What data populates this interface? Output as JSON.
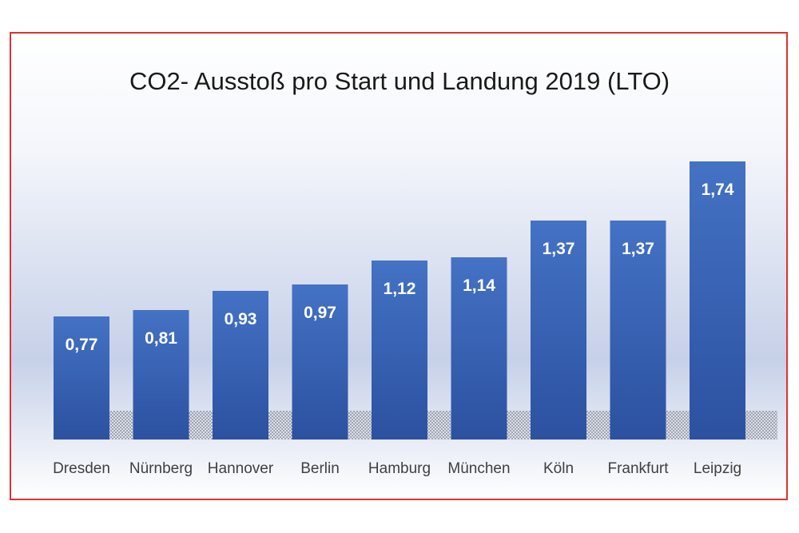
{
  "chart_data": {
    "type": "bar",
    "title": "CO2- Ausstoß pro Start und Landung 2019 (LTO)",
    "categories": [
      "Dresden",
      "Nürnberg",
      "Hannover",
      "Berlin",
      "Hamburg",
      "München",
      "Köln",
      "Frankfurt",
      "Leipzig"
    ],
    "values": [
      0.77,
      0.81,
      0.93,
      0.97,
      1.12,
      1.14,
      1.37,
      1.37,
      1.74
    ],
    "value_labels": [
      "0,77",
      "0,81",
      "0,93",
      "0,97",
      "1,12",
      "1,14",
      "1,37",
      "1,37",
      "1,74"
    ],
    "xlabel": "",
    "ylabel": "",
    "ylim": [
      0,
      1.8
    ],
    "grid": false,
    "legend": "none",
    "colors": {
      "bar_top": "#4472c4",
      "bar_bottom": "#2f55a4",
      "bg_top": "#ffffff",
      "bg_mid": "#c9d3ea",
      "frame": "#e03030"
    }
  }
}
